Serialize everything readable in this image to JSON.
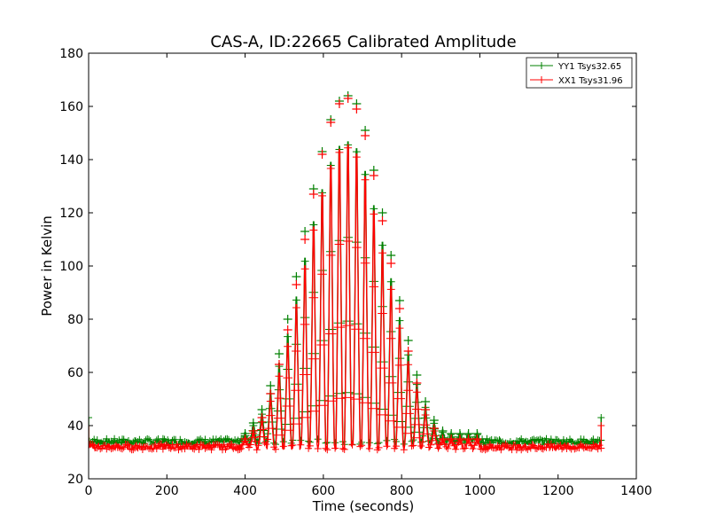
{
  "chart_data": {
    "type": "line",
    "title": "CAS-A, ID:22665 Calibrated Amplitude",
    "xlabel": "Time (seconds)",
    "ylabel": "Power in Kelvin",
    "xlim": [
      0,
      1400
    ],
    "ylim": [
      20,
      180
    ],
    "xticks": [
      0,
      200,
      400,
      600,
      800,
      1000,
      1200,
      1400
    ],
    "yticks": [
      20,
      40,
      60,
      80,
      100,
      120,
      140,
      160,
      180
    ],
    "xtick_labels": [
      "0",
      "200",
      "400",
      "600",
      "800",
      "1000",
      "1200",
      "1400"
    ],
    "ytick_labels": [
      "20",
      "40",
      "60",
      "80",
      "100",
      "120",
      "140",
      "160",
      "180"
    ],
    "grid": false,
    "legend_position": "top-right",
    "series": [
      {
        "name": "YY1 Tsys32.65",
        "color": "#008000",
        "marker": "plus",
        "baseline_value": 34,
        "start_spike": 43,
        "end_spike": 43,
        "x_end": 1310,
        "peaks_x": [
          400,
          421,
          443,
          465,
          487,
          509,
          531,
          553,
          575,
          597,
          619,
          641,
          663,
          685,
          707,
          729,
          751,
          773,
          795,
          817,
          839,
          861,
          883,
          905,
          927,
          949,
          971,
          993
        ],
        "peaks_y": [
          37,
          41,
          46,
          55,
          67,
          80,
          96,
          113,
          129,
          143,
          155,
          162,
          164,
          161,
          151,
          136,
          120,
          104,
          87,
          72,
          59,
          49,
          42,
          38,
          37,
          37,
          37,
          37
        ]
      },
      {
        "name": "XX1 Tsys31.96",
        "color": "#ff0000",
        "marker": "plus",
        "baseline_value": 32,
        "start_spike": 40,
        "end_spike": 40,
        "x_end": 1310,
        "peaks_x": [
          400,
          421,
          443,
          465,
          487,
          509,
          531,
          553,
          575,
          597,
          619,
          641,
          663,
          685,
          707,
          729,
          751,
          773,
          795,
          817,
          839,
          861,
          883,
          905,
          927,
          949,
          971,
          993
        ],
        "peaks_y": [
          35,
          38,
          43,
          52,
          63,
          76,
          93,
          110,
          127,
          142,
          154,
          161,
          163,
          159,
          149,
          134,
          117,
          101,
          84,
          68,
          56,
          46,
          39,
          35,
          35,
          35,
          35,
          35
        ]
      }
    ]
  }
}
